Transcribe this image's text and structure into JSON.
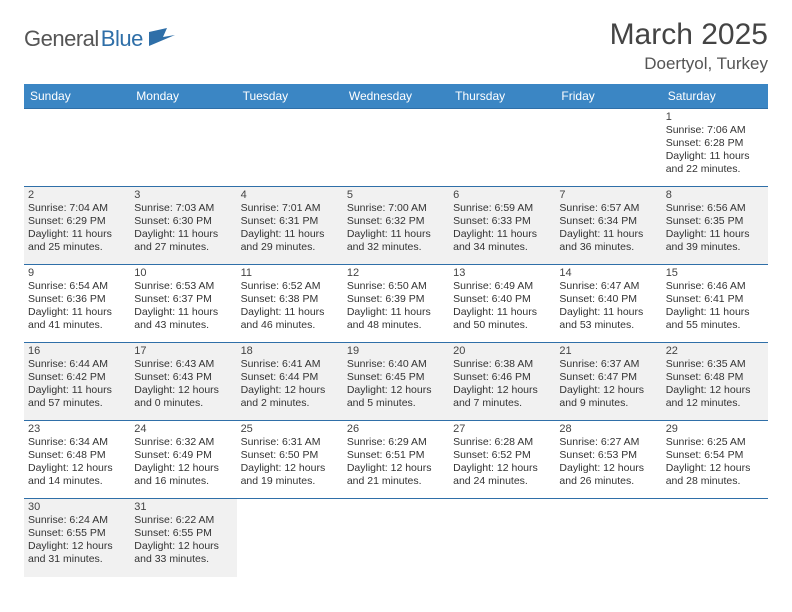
{
  "brand": {
    "part1": "General",
    "part2": "Blue"
  },
  "title": "March 2025",
  "location": "Doertyol, Turkey",
  "colors": {
    "header_bg": "#3b86c4",
    "border": "#2f6fa8",
    "shade": "#f1f1f1",
    "text": "#333333",
    "title": "#444444",
    "logo_gray": "#555555",
    "logo_blue": "#2f6fa8"
  },
  "typography": {
    "title_fontsize": 30,
    "location_fontsize": 17,
    "dow_fontsize": 12,
    "cell_fontsize": 10.5,
    "daynum_fontsize": 11
  },
  "days_of_week": [
    "Sunday",
    "Monday",
    "Tuesday",
    "Wednesday",
    "Thursday",
    "Friday",
    "Saturday"
  ],
  "weeks": [
    [
      null,
      null,
      null,
      null,
      null,
      null,
      {
        "n": "1",
        "sunrise": "Sunrise: 7:06 AM",
        "sunset": "Sunset: 6:28 PM",
        "daylight": "Daylight: 11 hours and 22 minutes.",
        "shade": false
      }
    ],
    [
      {
        "n": "2",
        "sunrise": "Sunrise: 7:04 AM",
        "sunset": "Sunset: 6:29 PM",
        "daylight": "Daylight: 11 hours and 25 minutes.",
        "shade": true
      },
      {
        "n": "3",
        "sunrise": "Sunrise: 7:03 AM",
        "sunset": "Sunset: 6:30 PM",
        "daylight": "Daylight: 11 hours and 27 minutes.",
        "shade": true
      },
      {
        "n": "4",
        "sunrise": "Sunrise: 7:01 AM",
        "sunset": "Sunset: 6:31 PM",
        "daylight": "Daylight: 11 hours and 29 minutes.",
        "shade": true
      },
      {
        "n": "5",
        "sunrise": "Sunrise: 7:00 AM",
        "sunset": "Sunset: 6:32 PM",
        "daylight": "Daylight: 11 hours and 32 minutes.",
        "shade": true
      },
      {
        "n": "6",
        "sunrise": "Sunrise: 6:59 AM",
        "sunset": "Sunset: 6:33 PM",
        "daylight": "Daylight: 11 hours and 34 minutes.",
        "shade": true
      },
      {
        "n": "7",
        "sunrise": "Sunrise: 6:57 AM",
        "sunset": "Sunset: 6:34 PM",
        "daylight": "Daylight: 11 hours and 36 minutes.",
        "shade": true
      },
      {
        "n": "8",
        "sunrise": "Sunrise: 6:56 AM",
        "sunset": "Sunset: 6:35 PM",
        "daylight": "Daylight: 11 hours and 39 minutes.",
        "shade": true
      }
    ],
    [
      {
        "n": "9",
        "sunrise": "Sunrise: 6:54 AM",
        "sunset": "Sunset: 6:36 PM",
        "daylight": "Daylight: 11 hours and 41 minutes.",
        "shade": false
      },
      {
        "n": "10",
        "sunrise": "Sunrise: 6:53 AM",
        "sunset": "Sunset: 6:37 PM",
        "daylight": "Daylight: 11 hours and 43 minutes.",
        "shade": false
      },
      {
        "n": "11",
        "sunrise": "Sunrise: 6:52 AM",
        "sunset": "Sunset: 6:38 PM",
        "daylight": "Daylight: 11 hours and 46 minutes.",
        "shade": false
      },
      {
        "n": "12",
        "sunrise": "Sunrise: 6:50 AM",
        "sunset": "Sunset: 6:39 PM",
        "daylight": "Daylight: 11 hours and 48 minutes.",
        "shade": false
      },
      {
        "n": "13",
        "sunrise": "Sunrise: 6:49 AM",
        "sunset": "Sunset: 6:40 PM",
        "daylight": "Daylight: 11 hours and 50 minutes.",
        "shade": false
      },
      {
        "n": "14",
        "sunrise": "Sunrise: 6:47 AM",
        "sunset": "Sunset: 6:40 PM",
        "daylight": "Daylight: 11 hours and 53 minutes.",
        "shade": false
      },
      {
        "n": "15",
        "sunrise": "Sunrise: 6:46 AM",
        "sunset": "Sunset: 6:41 PM",
        "daylight": "Daylight: 11 hours and 55 minutes.",
        "shade": false
      }
    ],
    [
      {
        "n": "16",
        "sunrise": "Sunrise: 6:44 AM",
        "sunset": "Sunset: 6:42 PM",
        "daylight": "Daylight: 11 hours and 57 minutes.",
        "shade": true
      },
      {
        "n": "17",
        "sunrise": "Sunrise: 6:43 AM",
        "sunset": "Sunset: 6:43 PM",
        "daylight": "Daylight: 12 hours and 0 minutes.",
        "shade": true
      },
      {
        "n": "18",
        "sunrise": "Sunrise: 6:41 AM",
        "sunset": "Sunset: 6:44 PM",
        "daylight": "Daylight: 12 hours and 2 minutes.",
        "shade": true
      },
      {
        "n": "19",
        "sunrise": "Sunrise: 6:40 AM",
        "sunset": "Sunset: 6:45 PM",
        "daylight": "Daylight: 12 hours and 5 minutes.",
        "shade": true
      },
      {
        "n": "20",
        "sunrise": "Sunrise: 6:38 AM",
        "sunset": "Sunset: 6:46 PM",
        "daylight": "Daylight: 12 hours and 7 minutes.",
        "shade": true
      },
      {
        "n": "21",
        "sunrise": "Sunrise: 6:37 AM",
        "sunset": "Sunset: 6:47 PM",
        "daylight": "Daylight: 12 hours and 9 minutes.",
        "shade": true
      },
      {
        "n": "22",
        "sunrise": "Sunrise: 6:35 AM",
        "sunset": "Sunset: 6:48 PM",
        "daylight": "Daylight: 12 hours and 12 minutes.",
        "shade": true
      }
    ],
    [
      {
        "n": "23",
        "sunrise": "Sunrise: 6:34 AM",
        "sunset": "Sunset: 6:48 PM",
        "daylight": "Daylight: 12 hours and 14 minutes.",
        "shade": false
      },
      {
        "n": "24",
        "sunrise": "Sunrise: 6:32 AM",
        "sunset": "Sunset: 6:49 PM",
        "daylight": "Daylight: 12 hours and 16 minutes.",
        "shade": false
      },
      {
        "n": "25",
        "sunrise": "Sunrise: 6:31 AM",
        "sunset": "Sunset: 6:50 PM",
        "daylight": "Daylight: 12 hours and 19 minutes.",
        "shade": false
      },
      {
        "n": "26",
        "sunrise": "Sunrise: 6:29 AM",
        "sunset": "Sunset: 6:51 PM",
        "daylight": "Daylight: 12 hours and 21 minutes.",
        "shade": false
      },
      {
        "n": "27",
        "sunrise": "Sunrise: 6:28 AM",
        "sunset": "Sunset: 6:52 PM",
        "daylight": "Daylight: 12 hours and 24 minutes.",
        "shade": false
      },
      {
        "n": "28",
        "sunrise": "Sunrise: 6:27 AM",
        "sunset": "Sunset: 6:53 PM",
        "daylight": "Daylight: 12 hours and 26 minutes.",
        "shade": false
      },
      {
        "n": "29",
        "sunrise": "Sunrise: 6:25 AM",
        "sunset": "Sunset: 6:54 PM",
        "daylight": "Daylight: 12 hours and 28 minutes.",
        "shade": false
      }
    ],
    [
      {
        "n": "30",
        "sunrise": "Sunrise: 6:24 AM",
        "sunset": "Sunset: 6:55 PM",
        "daylight": "Daylight: 12 hours and 31 minutes.",
        "shade": true
      },
      {
        "n": "31",
        "sunrise": "Sunrise: 6:22 AM",
        "sunset": "Sunset: 6:55 PM",
        "daylight": "Daylight: 12 hours and 33 minutes.",
        "shade": true
      },
      null,
      null,
      null,
      null,
      null
    ]
  ]
}
